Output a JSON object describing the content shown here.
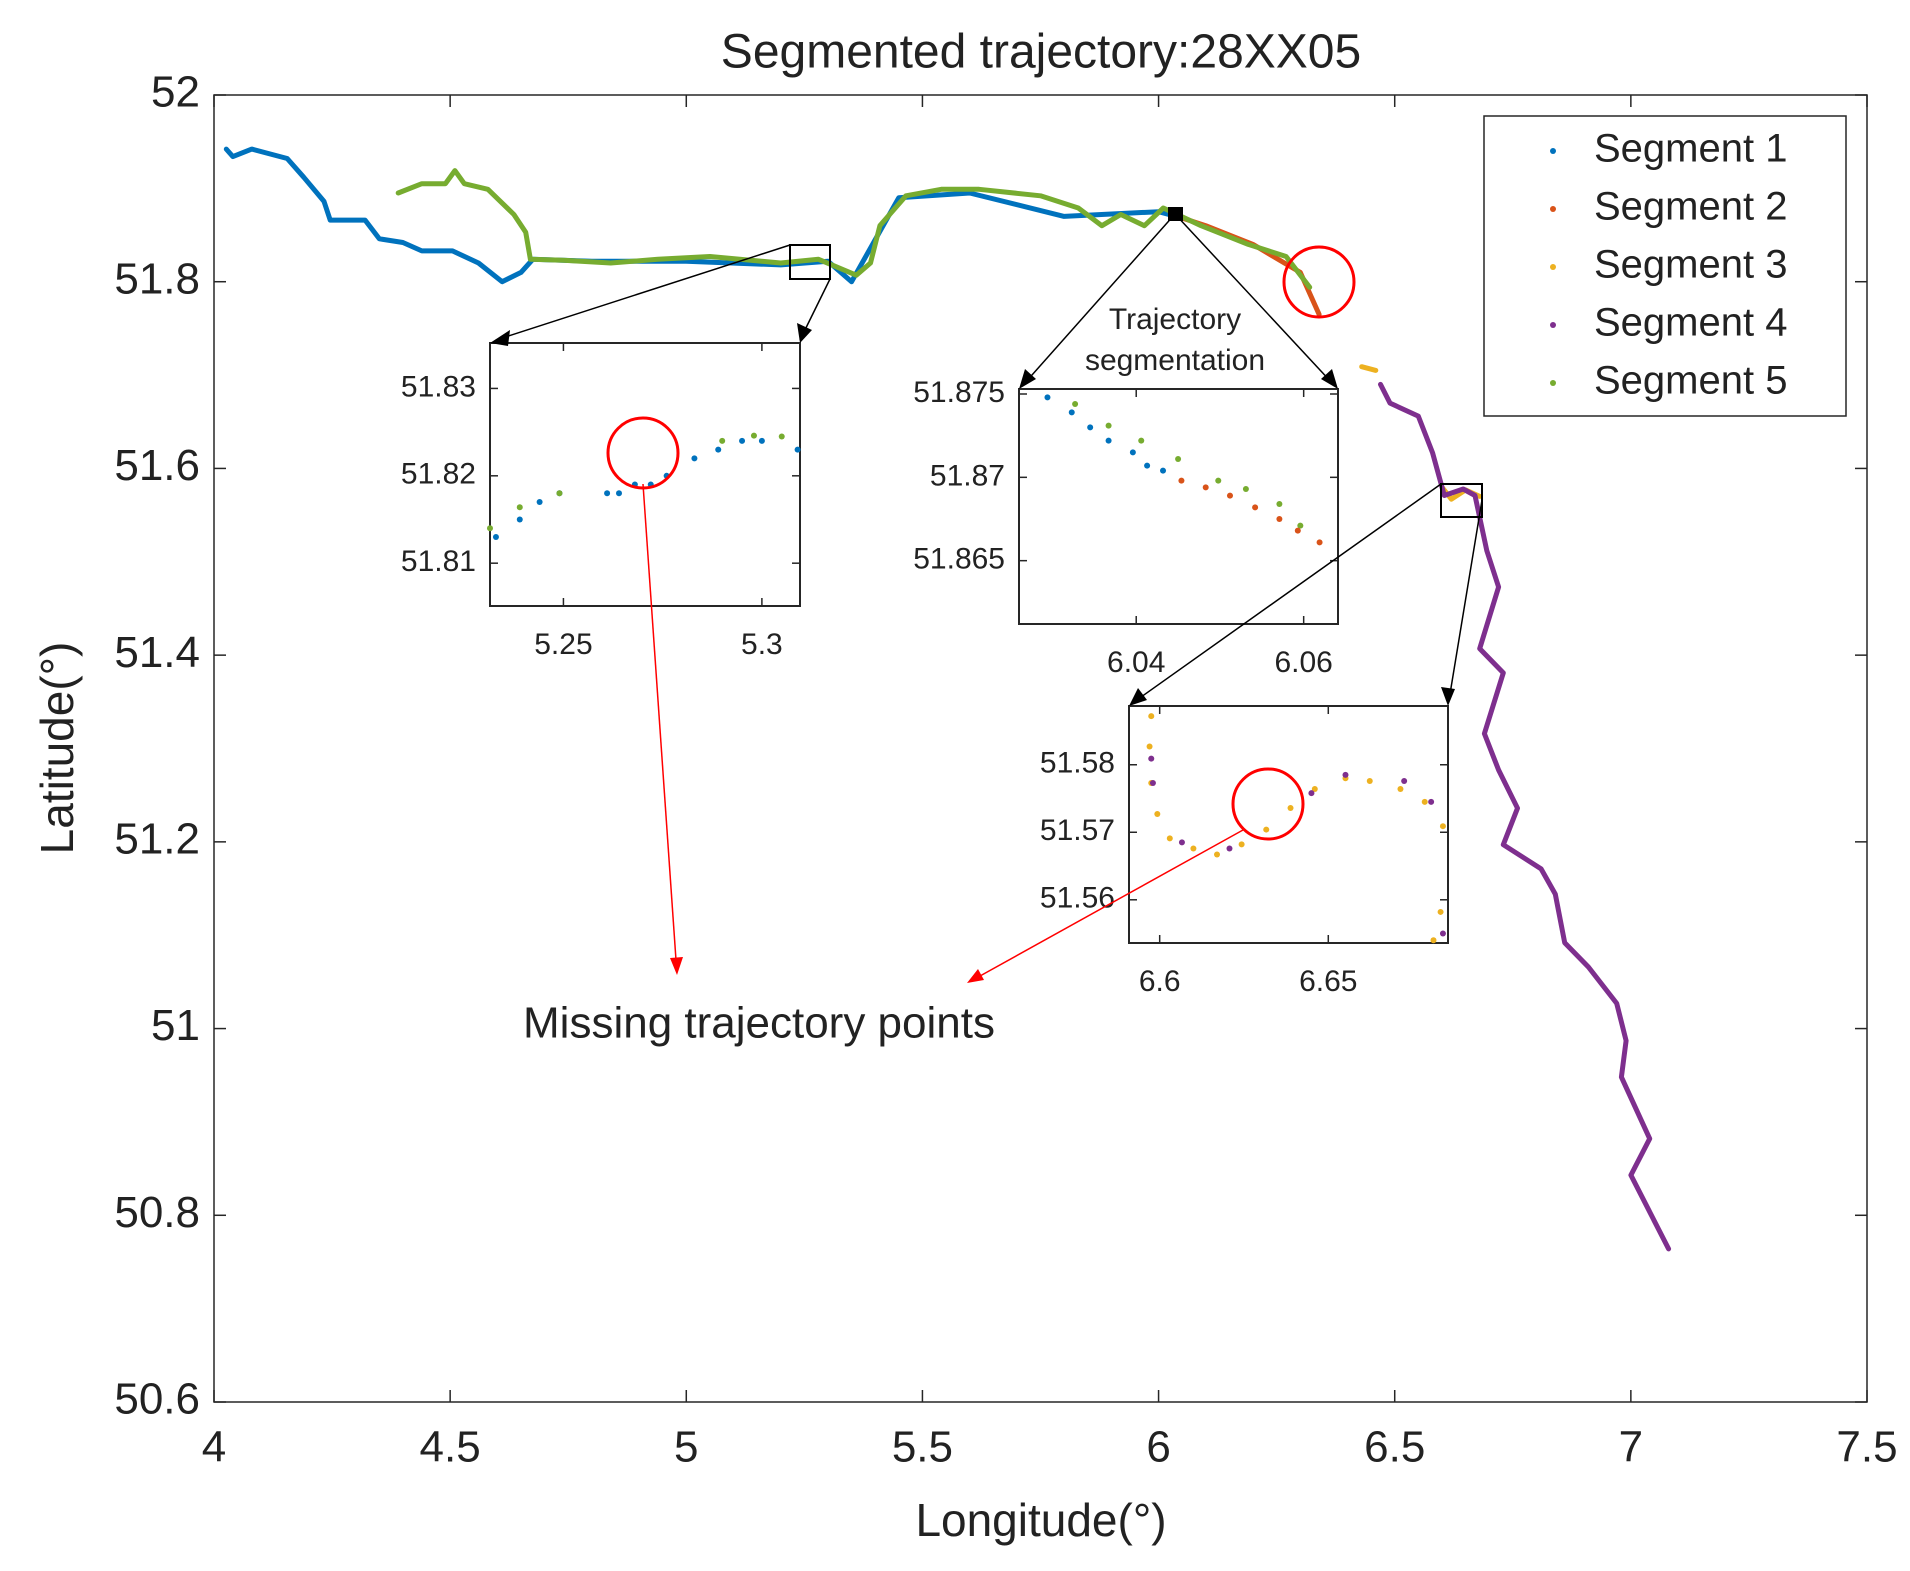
{
  "chart_data": [
    {
      "type": "scatter",
      "title": "Segmented trajectory:28XX05",
      "x_label": "Longitude(°)",
      "y_label": "Latitude(°)",
      "xlim": [
        4,
        7.5
      ],
      "ylim": [
        50.6,
        52
      ],
      "xticks": [
        4,
        4.5,
        5,
        5.5,
        6,
        6.5,
        7,
        7.5
      ],
      "yticks": [
        50.6,
        50.8,
        51,
        51.2,
        51.4,
        51.6,
        51.8,
        52
      ],
      "legend": "upper right",
      "annotations": [
        "Trajectory",
        "segmentation",
        "Missing trajectory points"
      ],
      "series": [
        {
          "name": "Segment 1",
          "color": "#0072BD",
          "x": [
            4.026,
            4.04,
            4.08,
            4.155,
            4.19,
            4.233,
            4.246,
            4.32,
            4.35,
            4.4,
            4.44,
            4.505,
            4.56,
            4.61,
            4.65,
            4.675,
            4.8,
            5.0,
            5.2,
            5.3,
            5.35,
            5.45,
            5.6,
            5.8,
            6.0,
            6.045
          ],
          "values": [
            51.942,
            51.934,
            51.942,
            51.932,
            51.912,
            51.886,
            51.866,
            51.866,
            51.846,
            51.842,
            51.833,
            51.833,
            51.82,
            51.8,
            51.81,
            51.824,
            51.822,
            51.822,
            51.818,
            51.822,
            51.8,
            51.89,
            51.895,
            51.87,
            51.875,
            51.869
          ]
        },
        {
          "name": "Segment 2",
          "color": "#D95319",
          "x": [
            6.045,
            6.1,
            6.2,
            6.3,
            6.34
          ],
          "values": [
            51.869,
            51.86,
            51.84,
            51.81,
            51.765
          ]
        },
        {
          "name": "Segment 3",
          "color": "#EDB120",
          "x": [
            6.43,
            6.46,
            null,
            6.6,
            6.62,
            6.65,
            6.68
          ],
          "values": [
            51.709,
            51.705,
            null,
            51.58,
            51.567,
            51.577,
            51.57
          ]
        },
        {
          "name": "Segment 4",
          "color": "#7E2F8E",
          "x": [
            6.47,
            6.49,
            6.55,
            6.58,
            6.605,
            6.645,
            6.67,
            6.695,
            6.72,
            6.68,
            6.73,
            6.69,
            6.72,
            6.76,
            6.73,
            6.81,
            6.84,
            6.86,
            6.91,
            6.97,
            6.99,
            6.98,
            7.04,
            7.0,
            7.08
          ],
          "values": [
            51.69,
            51.67,
            51.656,
            51.617,
            51.571,
            51.578,
            51.571,
            51.512,
            51.473,
            51.407,
            51.381,
            51.316,
            51.277,
            51.236,
            51.197,
            51.171,
            51.144,
            51.092,
            51.066,
            51.027,
            50.987,
            50.948,
            50.882,
            50.843,
            50.764
          ]
        },
        {
          "name": "Segment 5",
          "color": "#77AC30",
          "x": [
            4.39,
            4.44,
            4.49,
            4.51,
            4.53,
            4.58,
            4.635,
            4.66,
            4.67,
            4.74,
            4.84,
            4.94,
            5.05,
            5.2,
            5.28,
            5.36,
            5.39,
            5.41,
            5.465,
            5.54,
            5.62,
            5.75,
            5.83,
            5.88,
            5.92,
            5.97,
            6.01,
            6.09,
            6.19,
            6.27,
            6.32
          ],
          "values": [
            51.895,
            51.905,
            51.905,
            51.919,
            51.905,
            51.899,
            51.872,
            51.853,
            51.824,
            51.823,
            51.82,
            51.824,
            51.827,
            51.82,
            51.824,
            51.807,
            51.82,
            51.86,
            51.892,
            51.899,
            51.899,
            51.892,
            51.879,
            51.86,
            51.872,
            51.86,
            51.879,
            51.86,
            51.84,
            51.827,
            51.794
          ]
        }
      ]
    },
    {
      "type": "scatter",
      "xlim": [
        5.2315,
        5.3096
      ],
      "ylim": [
        51.8051,
        51.8352
      ],
      "xticks": [
        5.25,
        5.3
      ],
      "yticks": [
        51.81,
        51.82,
        51.83
      ],
      "series": [
        {
          "color": "#0072BD",
          "x": [
            5.233,
            5.239,
            5.244,
            5.249,
            5.261,
            5.264,
            5.268,
            5.272,
            5.276,
            5.283,
            5.289,
            5.295,
            5.3,
            5.309
          ],
          "values": [
            51.813,
            51.815,
            51.817,
            51.818,
            51.818,
            51.818,
            51.819,
            51.819,
            51.82,
            51.822,
            51.823,
            51.824,
            51.824,
            51.823
          ]
        },
        {
          "color": "#77AC30",
          "x": [
            5.2315,
            5.239,
            5.249,
            5.29,
            5.298,
            5.305
          ],
          "values": [
            51.814,
            51.8164,
            51.818,
            51.824,
            51.8246,
            51.8245
          ]
        }
      ]
    },
    {
      "type": "scatter",
      "xlim": [
        6.026,
        6.0641
      ],
      "ylim": [
        51.8612,
        51.8753
      ],
      "xticks": [
        6.04,
        6.06
      ],
      "yticks": [
        51.865,
        51.87,
        51.875
      ],
      "series": [
        {
          "color": "#0072BD",
          "x": [
            6.0294,
            6.0323,
            6.0345,
            6.0367,
            6.0396,
            6.0413,
            6.0432
          ],
          "values": [
            51.8748,
            51.8739,
            51.873,
            51.8722,
            51.8715,
            51.8707,
            51.8704
          ]
        },
        {
          "color": "#77AC30",
          "x": [
            6.0327,
            6.0367,
            6.0406,
            6.045,
            6.0498,
            6.0531,
            6.0571,
            6.0596
          ],
          "values": [
            51.8744,
            51.8731,
            51.8722,
            51.8711,
            51.8698,
            51.8693,
            51.8684,
            51.8671
          ]
        },
        {
          "color": "#D95319",
          "x": [
            6.0454,
            6.0483,
            6.0512,
            6.0542,
            6.0571,
            6.0593,
            6.0619
          ],
          "values": [
            51.8698,
            51.8694,
            51.8689,
            51.8682,
            51.8675,
            51.8668,
            51.8661
          ]
        }
      ]
    },
    {
      "type": "scatter",
      "xlim": [
        6.5909,
        6.6855
      ],
      "ylim": [
        51.5536,
        51.5887
      ],
      "xticks": [
        6.6,
        6.65
      ],
      "yticks": [
        51.56,
        51.57,
        51.58
      ],
      "series": [
        {
          "color": "#EDB120",
          "x": [
            6.5975,
            6.597,
            6.5975,
            6.5993,
            6.603,
            6.61,
            6.617,
            6.6243,
            6.6316,
            6.6388,
            6.646,
            6.6551,
            6.6623,
            6.6714,
            6.6786,
            6.684,
            6.6833,
            6.6812
          ],
          "values": [
            51.5872,
            51.5827,
            51.5773,
            51.5727,
            51.5691,
            51.5676,
            51.5667,
            51.5682,
            51.5704,
            51.5736,
            51.5764,
            51.578,
            51.5776,
            51.5764,
            51.5745,
            51.5709,
            51.5582,
            51.554
          ]
        },
        {
          "color": "#7E2F8E",
          "x": [
            6.5975,
            6.598,
            6.6066,
            6.6207,
            6.645,
            6.6551,
            6.6725,
            6.6805,
            6.684
          ],
          "values": [
            51.5809,
            51.5773,
            51.5685,
            51.5676,
            51.5758,
            51.5785,
            51.5776,
            51.5745,
            51.555
          ]
        }
      ]
    }
  ]
}
